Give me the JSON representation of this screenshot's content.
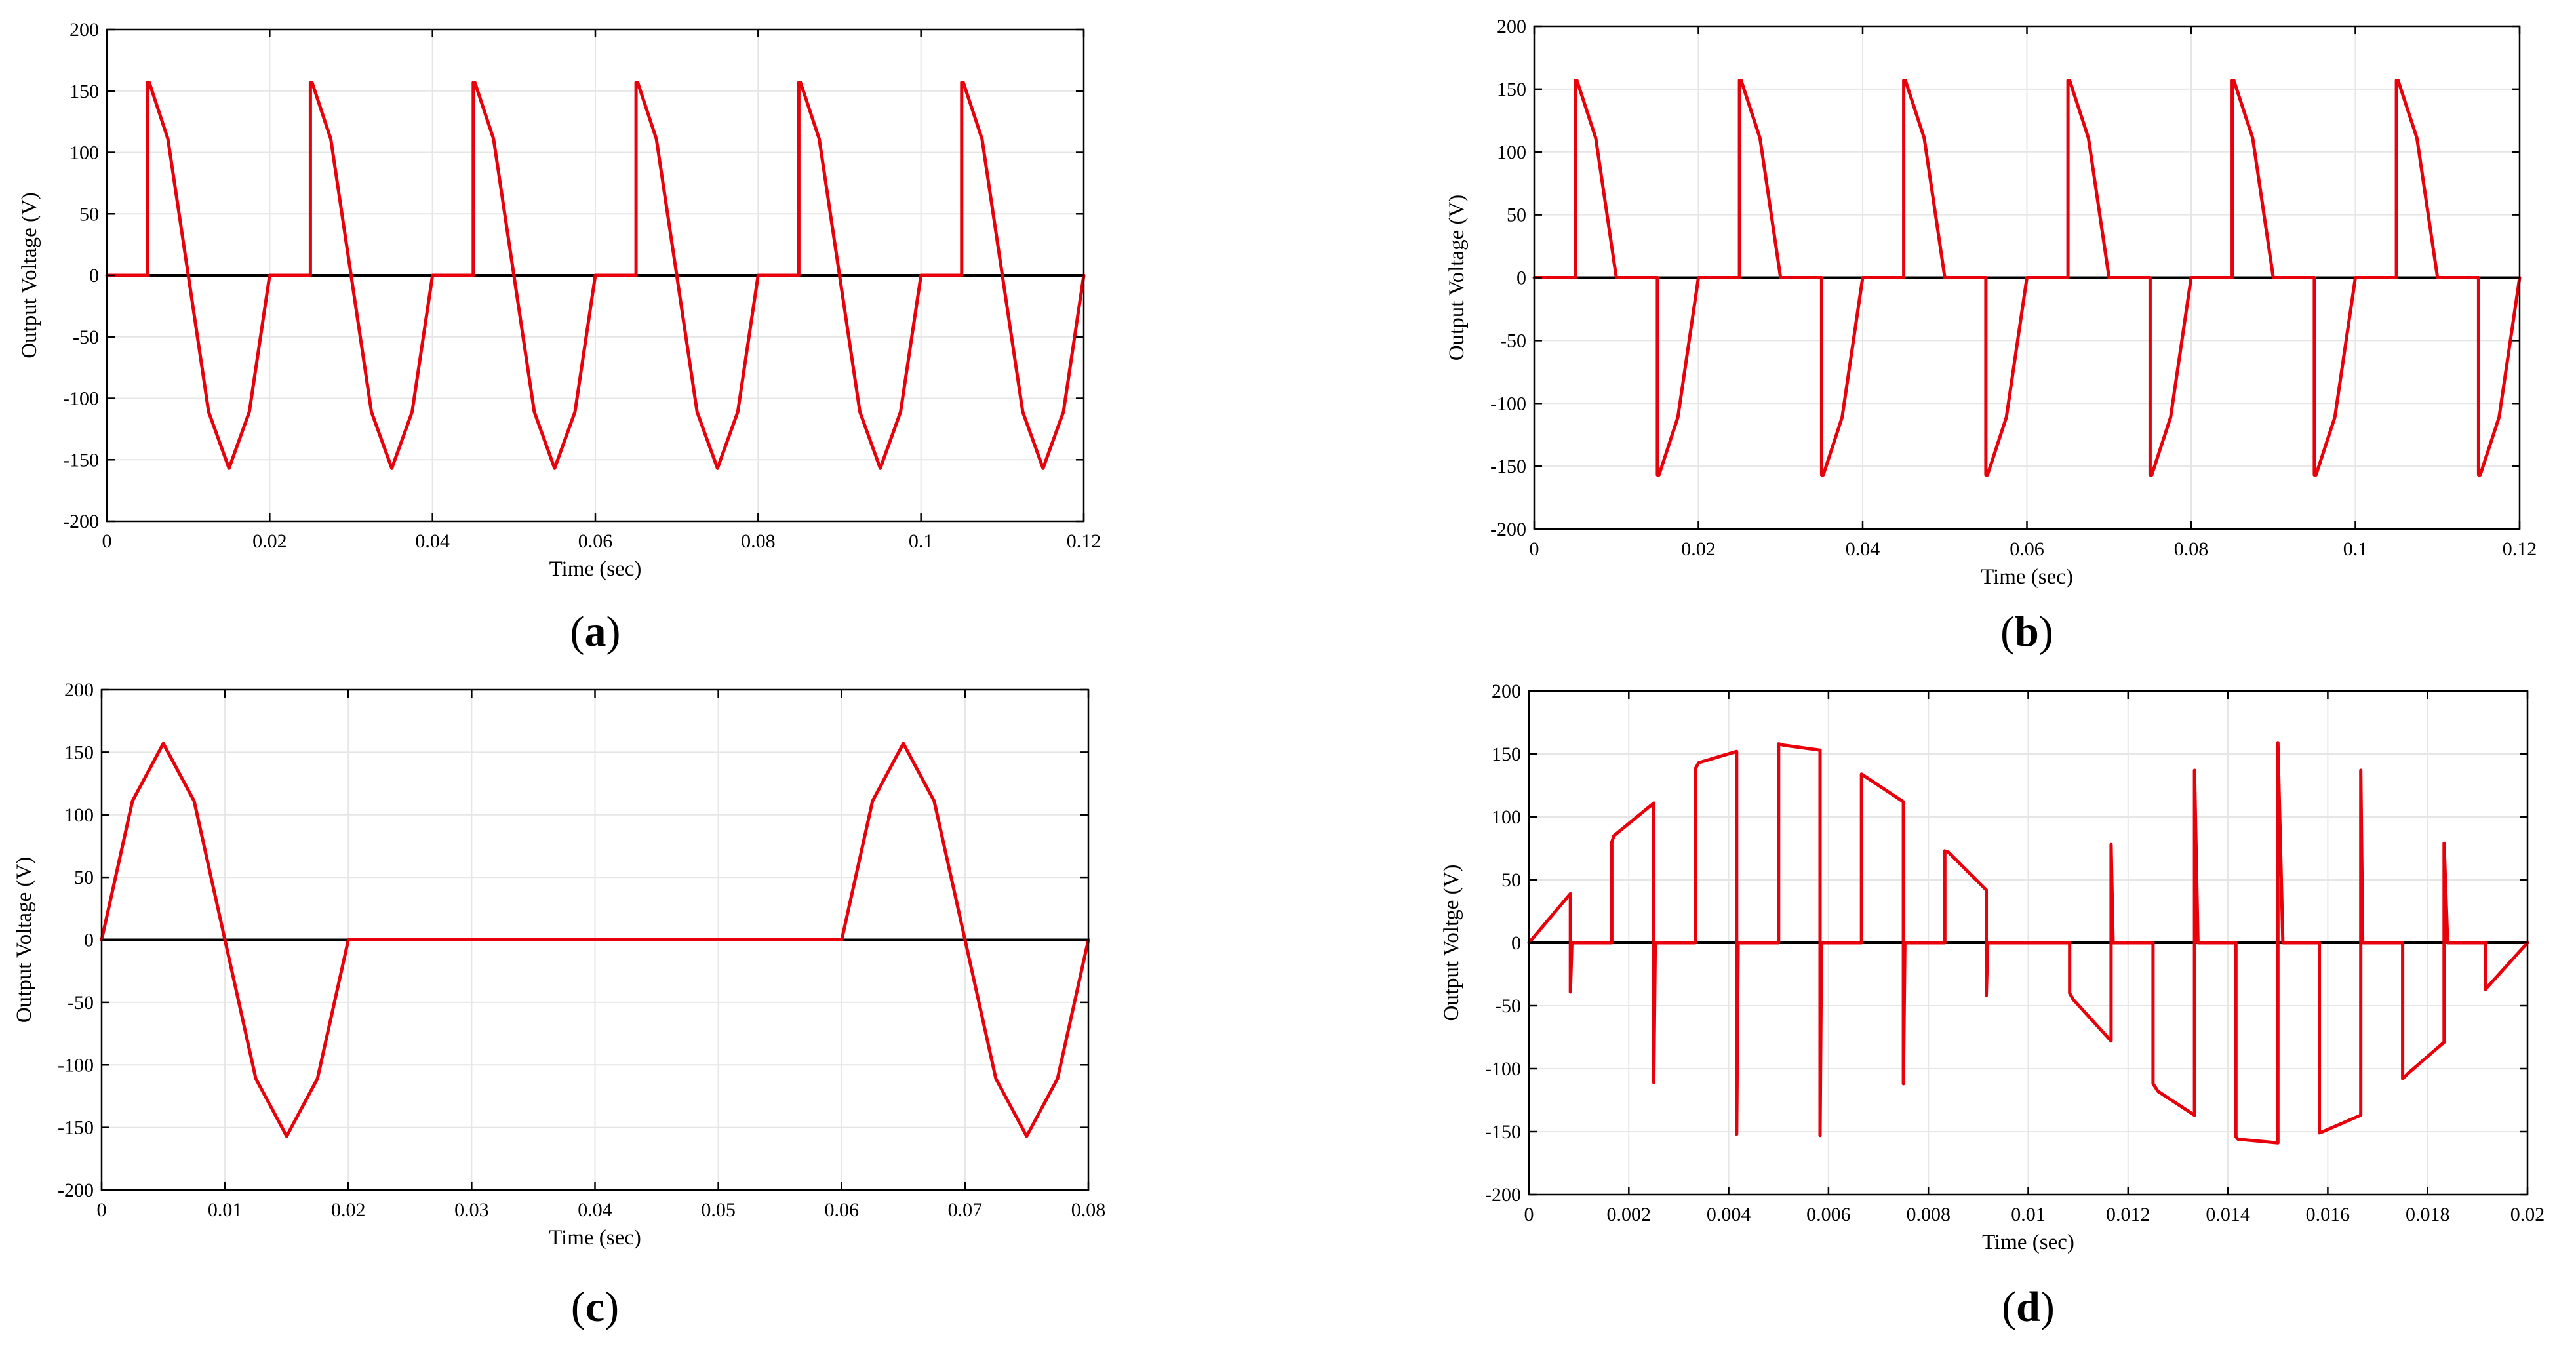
{
  "colors": {
    "signal": "#e8000b",
    "axis": "#000000",
    "grid": "#e6e6e6",
    "zero_line": "#000000"
  },
  "chart_data": [
    {
      "id": "a",
      "type": "line",
      "panel_label": "a",
      "xlabel": "Time (sec)",
      "ylabel": "Output Voltage (V)",
      "xlim": [
        0,
        0.12
      ],
      "ylim": [
        -200,
        200
      ],
      "xticks": [
        0,
        0.02,
        0.04,
        0.06,
        0.08,
        0.1,
        0.12
      ],
      "xtick_labels": [
        "0",
        "0.02",
        "0.04",
        "0.06",
        "0.08",
        "0.1",
        "0.12"
      ],
      "yticks": [
        -200,
        -150,
        -100,
        -50,
        0,
        50,
        100,
        150,
        200
      ],
      "ytick_labels": [
        "-200",
        "-150",
        "-100",
        "-50",
        "0",
        "50",
        "100",
        "150",
        "200"
      ],
      "grid": true,
      "series": [
        {
          "name": "Output voltage",
          "x": [
            0,
            0.005,
            0.005,
            0.0052,
            0.0075,
            0.01,
            0.0125,
            0.015,
            0.0175,
            0.02,
            0.025,
            0.025,
            0.0252,
            0.0275,
            0.03,
            0.0325,
            0.035,
            0.0375,
            0.04,
            0.045,
            0.045,
            0.0452,
            0.0475,
            0.05,
            0.0525,
            0.055,
            0.0575,
            0.06,
            0.065,
            0.065,
            0.0652,
            0.0675,
            0.07,
            0.0725,
            0.075,
            0.0775,
            0.08,
            0.085,
            0.085,
            0.0852,
            0.0875,
            0.09,
            0.0925,
            0.095,
            0.0975,
            0.1,
            0.105,
            0.105,
            0.1052,
            0.1075,
            0.11,
            0.1125,
            0.115,
            0.1175,
            0.12
          ],
          "y": [
            0,
            0,
            157,
            157,
            111,
            0,
            -111,
            -157,
            -111,
            0,
            0,
            157,
            157,
            111,
            0,
            -111,
            -157,
            -111,
            0,
            0,
            157,
            157,
            111,
            0,
            -111,
            -157,
            -111,
            0,
            0,
            157,
            157,
            111,
            0,
            -111,
            -157,
            -111,
            0,
            0,
            157,
            157,
            111,
            0,
            -111,
            -157,
            -111,
            0,
            0,
            157,
            157,
            111,
            0,
            -111,
            -157,
            -111,
            0
          ]
        }
      ]
    },
    {
      "id": "b",
      "type": "line",
      "panel_label": "b",
      "xlabel": "Time (sec)",
      "ylabel": "Output Voltage (V)",
      "xlim": [
        0,
        0.12
      ],
      "ylim": [
        -200,
        200
      ],
      "xticks": [
        0,
        0.02,
        0.04,
        0.06,
        0.08,
        0.1,
        0.12
      ],
      "xtick_labels": [
        "0",
        "0.02",
        "0.04",
        "0.06",
        "0.08",
        "0.1",
        "0.12"
      ],
      "yticks": [
        -200,
        -150,
        -100,
        -50,
        0,
        50,
        100,
        150,
        200
      ],
      "ytick_labels": [
        "-200",
        "-150",
        "-100",
        "-50",
        "0",
        "50",
        "100",
        "150",
        "200"
      ],
      "grid": true,
      "series": [
        {
          "name": "Output voltage",
          "x": [
            0,
            0.005,
            0.005,
            0.0052,
            0.0075,
            0.01,
            0.015,
            0.015,
            0.0152,
            0.0175,
            0.02,
            0.025,
            0.025,
            0.0252,
            0.0275,
            0.03,
            0.035,
            0.035,
            0.0352,
            0.0375,
            0.04,
            0.045,
            0.045,
            0.0452,
            0.0475,
            0.05,
            0.055,
            0.055,
            0.0552,
            0.0575,
            0.06,
            0.065,
            0.065,
            0.0652,
            0.0675,
            0.07,
            0.075,
            0.075,
            0.0752,
            0.0775,
            0.08,
            0.085,
            0.085,
            0.0852,
            0.0875,
            0.09,
            0.095,
            0.095,
            0.0952,
            0.0975,
            0.1,
            0.105,
            0.105,
            0.1052,
            0.1075,
            0.11,
            0.115,
            0.115,
            0.1152,
            0.1175,
            0.12
          ],
          "y": [
            0,
            0,
            157,
            157,
            111,
            0,
            0,
            -157,
            -157,
            -111,
            0,
            0,
            157,
            157,
            111,
            0,
            0,
            -157,
            -157,
            -111,
            0,
            0,
            157,
            157,
            111,
            0,
            0,
            -157,
            -157,
            -111,
            0,
            0,
            157,
            157,
            111,
            0,
            0,
            -157,
            -157,
            -111,
            0,
            0,
            157,
            157,
            111,
            0,
            0,
            -157,
            -157,
            -111,
            0,
            0,
            157,
            157,
            111,
            0,
            0,
            -157,
            -157,
            -111,
            0
          ]
        }
      ]
    },
    {
      "id": "c",
      "type": "line",
      "panel_label": "c",
      "xlabel": "Time (sec)",
      "ylabel": "Output Voltage (V)",
      "xlim": [
        0,
        0.08
      ],
      "ylim": [
        -200,
        200
      ],
      "xticks": [
        0,
        0.01,
        0.02,
        0.03,
        0.04,
        0.05,
        0.06,
        0.07,
        0.08
      ],
      "xtick_labels": [
        "0",
        "0.01",
        "0.02",
        "0.03",
        "0.04",
        "0.05",
        "0.06",
        "0.07",
        "0.08"
      ],
      "yticks": [
        -200,
        -150,
        -100,
        -50,
        0,
        50,
        100,
        150,
        200
      ],
      "ytick_labels": [
        "-200",
        "-150",
        "-100",
        "-50",
        "0",
        "50",
        "100",
        "150",
        "200"
      ],
      "grid": true,
      "series": [
        {
          "name": "Output voltage",
          "x": [
            0,
            0.0025,
            0.005,
            0.0075,
            0.01,
            0.0125,
            0.015,
            0.0175,
            0.02,
            0.06,
            0.0625,
            0.065,
            0.0675,
            0.07,
            0.0725,
            0.075,
            0.0775,
            0.08
          ],
          "y": [
            0,
            111,
            157,
            111,
            0,
            -111,
            -157,
            -111,
            0,
            0,
            111,
            157,
            111,
            0,
            -111,
            -157,
            -111,
            0
          ]
        }
      ]
    },
    {
      "id": "d",
      "type": "line",
      "panel_label": "d",
      "xlabel": "Time (sec)",
      "ylabel": "Output Voltge (V)",
      "xlim": [
        0,
        0.02
      ],
      "ylim": [
        -200,
        200
      ],
      "xticks": [
        0,
        0.002,
        0.004,
        0.006,
        0.008,
        0.01,
        0.012,
        0.014,
        0.016,
        0.018,
        0.02
      ],
      "xtick_labels": [
        "0",
        "0.002",
        "0.004",
        "0.006",
        "0.008",
        "0.01",
        "0.012",
        "0.014",
        "0.016",
        "0.018",
        "0.02"
      ],
      "yticks": [
        -200,
        -150,
        -100,
        -50,
        0,
        50,
        100,
        150,
        200
      ],
      "ytick_labels": [
        "-200",
        "-150",
        "-100",
        "-50",
        "0",
        "50",
        "100",
        "150",
        "200"
      ],
      "grid": true,
      "series": [
        {
          "name": "Output voltage",
          "x": [
            0,
            0.00083,
            0.00083,
            0.00086,
            0.00166,
            0.00166,
            0.0017,
            0.0025,
            0.0025,
            0.00253,
            0.00333,
            0.00333,
            0.0034,
            0.00416,
            0.00416,
            0.00419,
            0.005,
            0.005,
            0.0051,
            0.00583,
            0.00583,
            0.00586,
            0.00666,
            0.00666,
            0.0067,
            0.0075,
            0.0075,
            0.00753,
            0.00833,
            0.00833,
            0.0084,
            0.00916,
            0.00916,
            0.00919,
            0.01083,
            0.01083,
            0.0109,
            0.01166,
            0.01166,
            0.0117,
            0.0125,
            0.0125,
            0.0126,
            0.01333,
            0.01333,
            0.0134,
            0.01416,
            0.01416,
            0.0142,
            0.015,
            0.015,
            0.0151,
            0.01583,
            0.01583,
            0.0159,
            0.01666,
            0.01666,
            0.0167,
            0.0175,
            0.0175,
            0.0176,
            0.01833,
            0.01833,
            0.0184,
            0.01916,
            0.01916,
            0.0192,
            0.02
          ],
          "y": [
            0,
            39,
            -39,
            0,
            0,
            80,
            85,
            111,
            -111,
            0,
            0,
            138,
            143,
            152,
            -152,
            0,
            0,
            158,
            157,
            153,
            -153,
            0,
            0,
            134,
            133,
            112,
            -112,
            0,
            0,
            73,
            72,
            42,
            -42,
            0,
            0,
            -40,
            -45,
            -78,
            78,
            0,
            0,
            -112,
            -118,
            -137,
            137,
            0,
            0,
            -154,
            -156,
            -159,
            159,
            0,
            0,
            -151,
            -150,
            -137,
            137,
            0,
            0,
            -108,
            -104,
            -79,
            79,
            0,
            0,
            -37,
            -35,
            0
          ]
        }
      ]
    }
  ]
}
